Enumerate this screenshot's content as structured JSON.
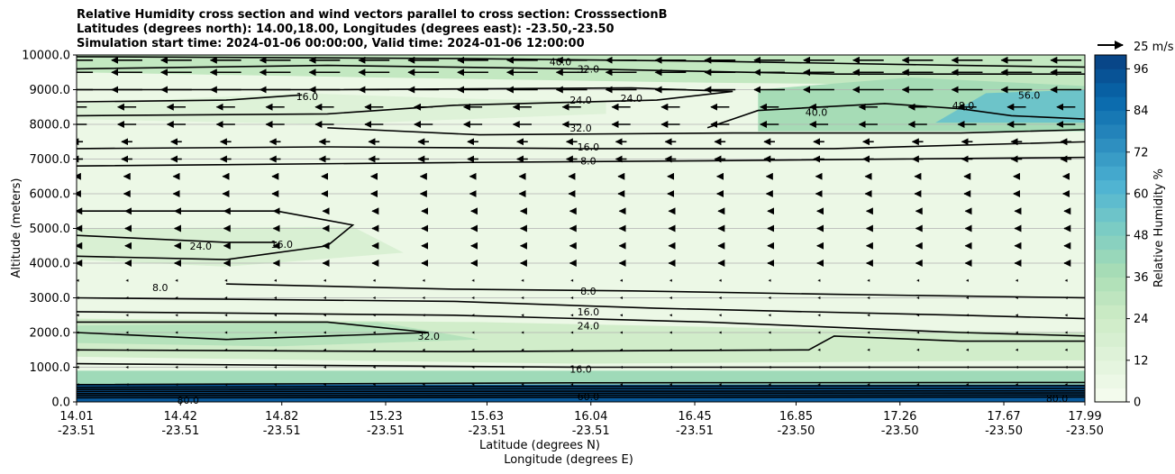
{
  "title_lines": [
    "Relative Humidity cross section and wind vectors parallel to cross section: CrosssectionB",
    "Latitudes (degrees north): 14.00,18.00, Longitudes (degrees east): -23.50,-23.50",
    "Simulation start time: 2024-01-06 00:00:00, Valid time: 2024-01-06 12:00:00"
  ],
  "chart_data": {
    "type": "heatmap",
    "ylabel": "Altitude (meters)",
    "xlabel_lat": "Latitude (degrees N)",
    "xlabel_lon": "Longitude (degrees E)",
    "ylim": [
      0,
      10000
    ],
    "yticks": [
      "0.0",
      "1000.0",
      "2000.0",
      "3000.0",
      "4000.0",
      "5000.0",
      "6000.0",
      "7000.0",
      "8000.0",
      "9000.0",
      "10000.0"
    ],
    "ytick_values": [
      0,
      1000,
      2000,
      3000,
      4000,
      5000,
      6000,
      7000,
      8000,
      9000,
      10000
    ],
    "x_lat_ticks": [
      "14.01",
      "14.42",
      "14.82",
      "15.23",
      "15.63",
      "16.04",
      "16.45",
      "16.85",
      "17.26",
      "17.67",
      "17.99"
    ],
    "x_lon_ticks": [
      "-23.51",
      "-23.51",
      "-23.51",
      "-23.51",
      "-23.51",
      "-23.51",
      "-23.51",
      "-23.50",
      "-23.50",
      "-23.50",
      "-23.50"
    ],
    "xlim": [
      14.01,
      17.99
    ],
    "grid": "horizontal",
    "colorbar": {
      "label": "Relative Humidity %",
      "ticks": [
        "0",
        "12",
        "24",
        "36",
        "48",
        "60",
        "72",
        "84",
        "96"
      ],
      "tick_values": [
        0,
        12,
        24,
        36,
        48,
        60,
        72,
        84,
        96
      ],
      "range": [
        0,
        100
      ],
      "colormap": "GnBu",
      "colors": [
        "#f7fcf0",
        "#e0f3db",
        "#ccebc5",
        "#a8ddb5",
        "#7bccc4",
        "#4eb3d3",
        "#2b8cbe",
        "#0868ac",
        "#084081"
      ]
    },
    "wind_key_label": "25 m/s",
    "contour_labels": [
      {
        "text": "40.0",
        "x": 15.92,
        "y": 9800
      },
      {
        "text": "32.0",
        "x": 16.03,
        "y": 9600
      },
      {
        "text": "16.0",
        "x": 14.92,
        "y": 8800
      },
      {
        "text": "24.0",
        "x": 16.0,
        "y": 8700
      },
      {
        "text": "24.0",
        "x": 16.2,
        "y": 8750
      },
      {
        "text": "32.0",
        "x": 16.0,
        "y": 7900
      },
      {
        "text": "16.0",
        "x": 16.03,
        "y": 7350
      },
      {
        "text": "8.0",
        "x": 16.03,
        "y": 6950
      },
      {
        "text": "40.0",
        "x": 16.93,
        "y": 8350
      },
      {
        "text": "48.0",
        "x": 17.51,
        "y": 8550
      },
      {
        "text": "56.0",
        "x": 17.77,
        "y": 8850
      },
      {
        "text": "24.0",
        "x": 14.5,
        "y": 4500
      },
      {
        "text": "16.0",
        "x": 14.82,
        "y": 4550
      },
      {
        "text": "8.0",
        "x": 14.34,
        "y": 3300
      },
      {
        "text": "8.0",
        "x": 16.03,
        "y": 3200
      },
      {
        "text": "16.0",
        "x": 16.03,
        "y": 2600
      },
      {
        "text": "24.0",
        "x": 16.03,
        "y": 2200
      },
      {
        "text": "32.0",
        "x": 15.4,
        "y": 1900
      },
      {
        "text": "16.0",
        "x": 16.0,
        "y": 950
      },
      {
        "text": "60.0",
        "x": 16.03,
        "y": 150
      },
      {
        "text": "80.0",
        "x": 14.45,
        "y": 50
      },
      {
        "text": "80.0",
        "x": 17.88,
        "y": 100
      }
    ]
  }
}
